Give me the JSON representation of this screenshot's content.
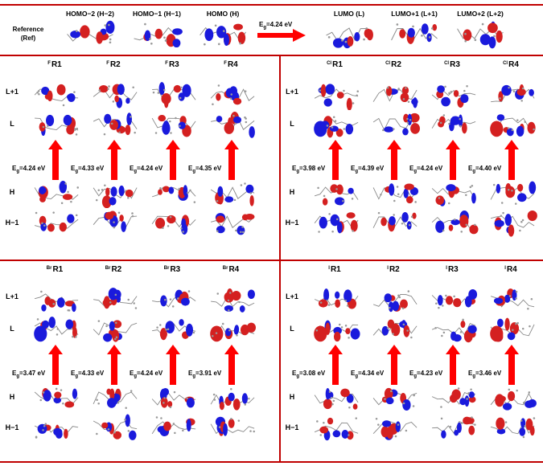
{
  "reference": {
    "label_line1": "Reference",
    "label_line2": "(Ref)",
    "headers": [
      "HOMO−2 (H−2)",
      "HOMO−1 (H−1)",
      "HOMO (H)",
      "LUMO (L)",
      "LUMO+1 (L+1)",
      "LUMO+2 (L+2)"
    ],
    "eg_prefix": "E",
    "eg_sub": "g",
    "eg_value": "=4.24 eV"
  },
  "row_labels": [
    "L+1",
    "L",
    "H",
    "H−1"
  ],
  "panels": [
    {
      "id": "F",
      "prefix": "F",
      "columns": [
        "R1",
        "R2",
        "R3",
        "R4"
      ],
      "gaps": [
        "=4.24 eV",
        "=4.33 eV",
        "=4.24 eV",
        "=4.35 eV"
      ]
    },
    {
      "id": "Cl",
      "prefix": "Cl",
      "columns": [
        "R1",
        "R2",
        "R3",
        "R4"
      ],
      "gaps": [
        "=3.98 eV",
        "=4.39 eV",
        "=4.24 eV",
        "=4.40 eV"
      ]
    },
    {
      "id": "Br",
      "prefix": "Br",
      "columns": [
        "R1",
        "R2",
        "R3",
        "R4"
      ],
      "gaps": [
        "=3.47 eV",
        "=4.33 eV",
        "=4.24 eV",
        "=3.91 eV"
      ]
    },
    {
      "id": "I",
      "prefix": "I",
      "columns": [
        "R1",
        "R2",
        "R3",
        "R4"
      ],
      "gaps": [
        "=3.08 eV",
        "=4.34 eV",
        "=4.23 eV",
        "=3.46 eV"
      ]
    }
  ],
  "colors": {
    "divider": "#c00000",
    "arrow": "#ff0000",
    "lobe_positive": "#d42020",
    "lobe_negative": "#1a1adc"
  }
}
